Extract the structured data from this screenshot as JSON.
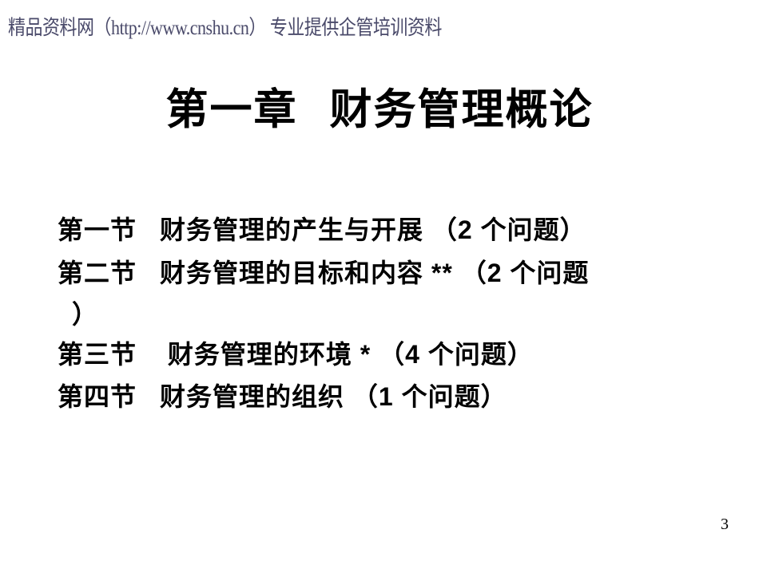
{
  "watermark": "精品资料网（http://www.cnshu.cn） 专业提供企管培训资料",
  "chapterTitle": {
    "prefix": "第一章",
    "main": "财务管理概论"
  },
  "sections": [
    {
      "num": "第一节",
      "text": "财务管理的产生与开展 （2 个问题）",
      "wrap": ""
    },
    {
      "num": "第二节",
      "text": "财务管理的目标和内容 ** （2 个问题",
      "wrap": "）"
    },
    {
      "num": "第三节",
      "text": " 财务管理的环境 * （4 个问题）",
      "wrap": ""
    },
    {
      "num": "第四节",
      "text": "财务管理的组织 （1 个问题）",
      "wrap": ""
    }
  ],
  "pageNumber": "3",
  "colors": {
    "background": "#ffffff",
    "watermarkText": "#4a4a6a",
    "bodyText": "#000000"
  },
  "fonts": {
    "titleSize": 53,
    "sectionSize": 32,
    "watermarkSize": 22,
    "pageNumSize": 20
  }
}
